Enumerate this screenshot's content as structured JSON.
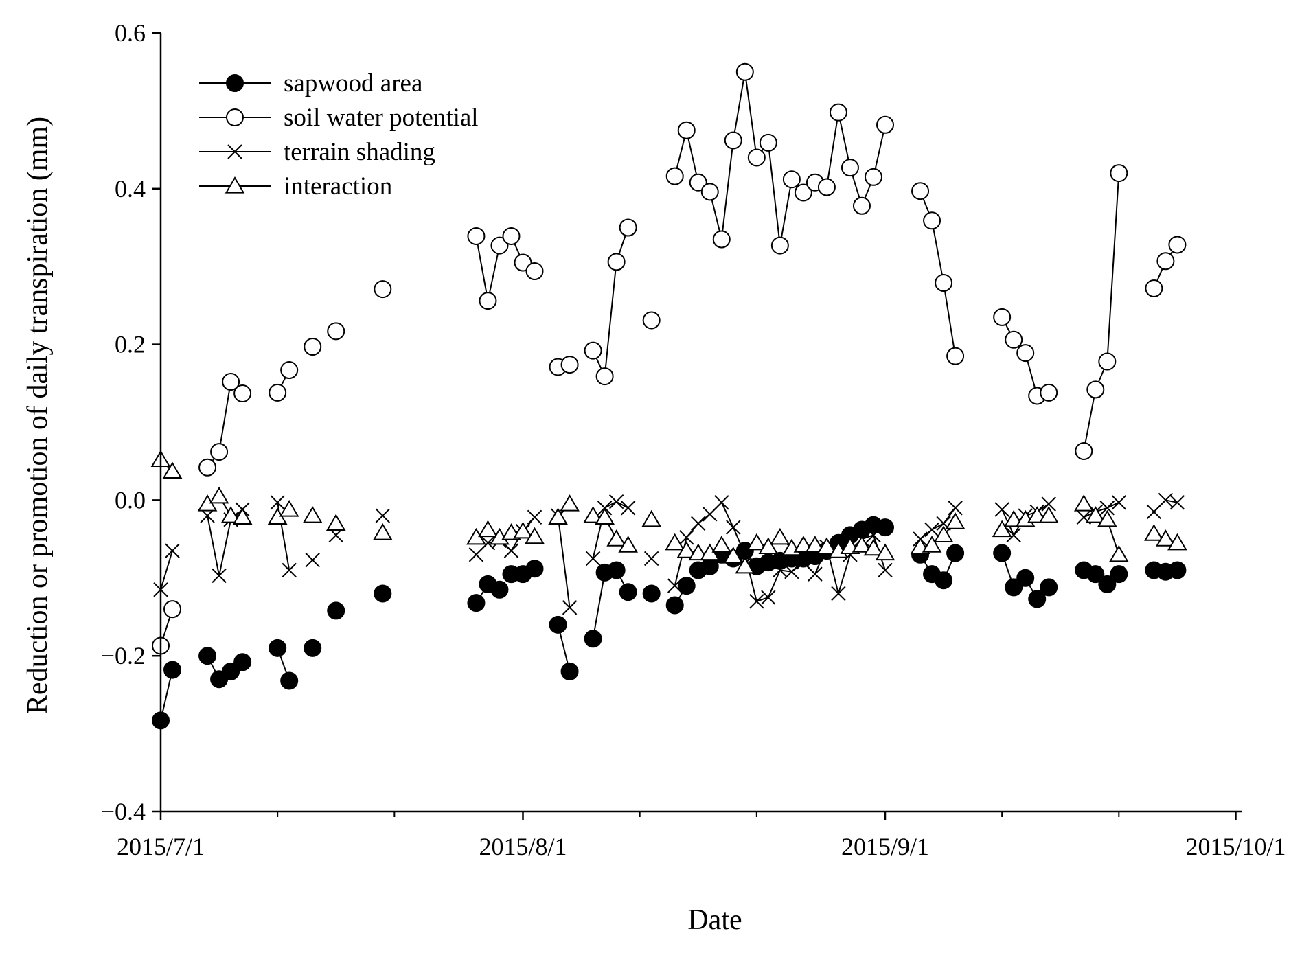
{
  "chart_data": {
    "type": "scatter",
    "title": "",
    "xlabel": "Date",
    "ylabel": "Reduction or promotion of daily transpiration (mm)",
    "x_unit": "day of year 2015",
    "xlim": [
      182,
      274.5
    ],
    "ylim": [
      -0.4,
      0.6
    ],
    "x_ticks": [
      {
        "value": 182,
        "label": "2015/7/1"
      },
      {
        "value": 213,
        "label": "2015/8/1"
      },
      {
        "value": 244,
        "label": "2015/9/1"
      },
      {
        "value": 274,
        "label": "2015/10/1"
      }
    ],
    "x_minor_ticks": [
      192,
      202,
      223,
      233,
      254,
      264
    ],
    "y_ticks": [
      {
        "value": -0.4,
        "label": "−0.4"
      },
      {
        "value": -0.2,
        "label": "−0.2"
      },
      {
        "value": 0.0,
        "label": "0.0"
      },
      {
        "value": 0.2,
        "label": "0.2"
      },
      {
        "value": 0.4,
        "label": "0.4"
      },
      {
        "value": 0.6,
        "label": "0.6"
      }
    ],
    "grid": false,
    "legend_position": "top-left",
    "series": [
      {
        "name": "sapwood area",
        "marker": "filled-circle",
        "color": "#000000",
        "segments": [
          [
            [
              182,
              -0.283
            ],
            [
              183,
              -0.218
            ]
          ],
          [
            [
              186,
              -0.2
            ],
            [
              187,
              -0.23
            ],
            [
              188,
              -0.22
            ],
            [
              189,
              -0.208
            ]
          ],
          [
            [
              192,
              -0.19
            ],
            [
              193,
              -0.232
            ]
          ],
          [
            [
              195,
              -0.19
            ]
          ],
          [
            [
              197,
              -0.142
            ]
          ],
          [
            [
              201,
              -0.12
            ]
          ],
          [
            [
              209,
              -0.132
            ],
            [
              210,
              -0.108
            ],
            [
              211,
              -0.115
            ]
          ],
          [
            [
              212,
              -0.095
            ],
            [
              213,
              -0.095
            ],
            [
              214,
              -0.088
            ]
          ],
          [
            [
              216,
              -0.16
            ],
            [
              217,
              -0.22
            ]
          ],
          [
            [
              219,
              -0.178
            ],
            [
              220,
              -0.093
            ],
            [
              221,
              -0.09
            ],
            [
              222,
              -0.118
            ]
          ],
          [
            [
              224,
              -0.12
            ]
          ],
          [
            [
              226,
              -0.135
            ],
            [
              227,
              -0.11
            ]
          ],
          [
            [
              228,
              -0.09
            ],
            [
              229,
              -0.085
            ],
            [
              230,
              -0.07
            ],
            [
              231,
              -0.075
            ],
            [
              232,
              -0.065
            ],
            [
              233,
              -0.085
            ],
            [
              234,
              -0.08
            ],
            [
              235,
              -0.078
            ],
            [
              236,
              -0.075
            ],
            [
              237,
              -0.075
            ],
            [
              238,
              -0.072
            ],
            [
              239,
              -0.065
            ],
            [
              240,
              -0.055
            ],
            [
              241,
              -0.045
            ],
            [
              242,
              -0.038
            ],
            [
              243,
              -0.032
            ],
            [
              244,
              -0.035
            ]
          ],
          [
            [
              247,
              -0.07
            ],
            [
              248,
              -0.095
            ],
            [
              249,
              -0.103
            ],
            [
              250,
              -0.068
            ]
          ],
          [
            [
              254,
              -0.068
            ],
            [
              255,
              -0.112
            ],
            [
              256,
              -0.1
            ],
            [
              257,
              -0.127
            ],
            [
              258,
              -0.112
            ]
          ],
          [
            [
              261,
              -0.09
            ],
            [
              262,
              -0.095
            ],
            [
              263,
              -0.108
            ],
            [
              264,
              -0.095
            ]
          ],
          [
            [
              267,
              -0.09
            ],
            [
              268,
              -0.092
            ],
            [
              269,
              -0.09
            ]
          ]
        ]
      },
      {
        "name": "soil water potential",
        "marker": "open-circle",
        "color": "#000000",
        "segments": [
          [
            [
              182,
              -0.187
            ],
            [
              183,
              -0.14
            ]
          ],
          [
            [
              186,
              0.042
            ],
            [
              187,
              0.062
            ],
            [
              188,
              0.152
            ],
            [
              189,
              0.137
            ]
          ],
          [
            [
              192,
              0.138
            ],
            [
              193,
              0.167
            ]
          ],
          [
            [
              195,
              0.197
            ]
          ],
          [
            [
              197,
              0.217
            ]
          ],
          [
            [
              201,
              0.271
            ]
          ],
          [
            [
              209,
              0.339
            ],
            [
              210,
              0.256
            ],
            [
              211,
              0.327
            ],
            [
              212,
              0.339
            ],
            [
              213,
              0.305
            ],
            [
              214,
              0.294
            ]
          ],
          [
            [
              216,
              0.171
            ],
            [
              217,
              0.174
            ]
          ],
          [
            [
              219,
              0.192
            ],
            [
              220,
              0.159
            ],
            [
              221,
              0.306
            ],
            [
              222,
              0.35
            ]
          ],
          [
            [
              224,
              0.231
            ]
          ],
          [
            [
              226,
              0.416
            ],
            [
              227,
              0.475
            ],
            [
              228,
              0.408
            ],
            [
              229,
              0.396
            ],
            [
              230,
              0.335
            ],
            [
              231,
              0.462
            ],
            [
              232,
              0.55
            ],
            [
              233,
              0.44
            ],
            [
              234,
              0.459
            ],
            [
              235,
              0.327
            ],
            [
              236,
              0.412
            ],
            [
              237,
              0.395
            ],
            [
              238,
              0.408
            ],
            [
              239,
              0.402
            ],
            [
              240,
              0.498
            ],
            [
              241,
              0.427
            ],
            [
              242,
              0.378
            ],
            [
              243,
              0.415
            ],
            [
              244,
              0.482
            ]
          ],
          [
            [
              247,
              0.397
            ],
            [
              248,
              0.359
            ],
            [
              249,
              0.279
            ],
            [
              250,
              0.185
            ]
          ],
          [
            [
              254,
              0.235
            ],
            [
              255,
              0.206
            ],
            [
              256,
              0.189
            ],
            [
              257,
              0.134
            ],
            [
              258,
              0.138
            ]
          ],
          [
            [
              261,
              0.063
            ],
            [
              262,
              0.142
            ],
            [
              263,
              0.178
            ],
            [
              264,
              0.42
            ]
          ],
          [
            [
              267,
              0.272
            ],
            [
              268,
              0.307
            ],
            [
              269,
              0.328
            ]
          ]
        ]
      },
      {
        "name": "terrain shading",
        "marker": "cross",
        "color": "#000000",
        "segments": [
          [
            [
              182,
              -0.115
            ],
            [
              183,
              -0.065
            ]
          ],
          [
            [
              186,
              -0.02
            ],
            [
              187,
              -0.097
            ],
            [
              188,
              -0.025
            ],
            [
              189,
              -0.012
            ]
          ],
          [
            [
              192,
              -0.003
            ],
            [
              193,
              -0.09
            ]
          ],
          [
            [
              195,
              -0.077
            ]
          ],
          [
            [
              197,
              -0.045
            ]
          ],
          [
            [
              201,
              -0.02
            ]
          ],
          [
            [
              209,
              -0.07
            ],
            [
              210,
              -0.055
            ],
            [
              211,
              -0.052
            ],
            [
              212,
              -0.065
            ],
            [
              213,
              -0.04
            ],
            [
              214,
              -0.022
            ]
          ],
          [
            [
              216,
              -0.02
            ],
            [
              217,
              -0.138
            ]
          ],
          [
            [
              219,
              -0.075
            ],
            [
              220,
              -0.01
            ],
            [
              221,
              -0.002
            ],
            [
              222,
              -0.01
            ]
          ],
          [
            [
              224,
              -0.075
            ]
          ],
          [
            [
              226,
              -0.11
            ],
            [
              227,
              -0.048
            ],
            [
              228,
              -0.03
            ],
            [
              229,
              -0.018
            ],
            [
              230,
              -0.003
            ],
            [
              231,
              -0.035
            ],
            [
              232,
              -0.07
            ],
            [
              233,
              -0.13
            ],
            [
              234,
              -0.125
            ],
            [
              235,
              -0.09
            ],
            [
              236,
              -0.092
            ],
            [
              237,
              -0.08
            ],
            [
              238,
              -0.095
            ],
            [
              239,
              -0.06
            ],
            [
              240,
              -0.12
            ],
            [
              241,
              -0.07
            ],
            [
              242,
              -0.05
            ],
            [
              243,
              -0.045
            ],
            [
              244,
              -0.09
            ]
          ],
          [
            [
              247,
              -0.05
            ],
            [
              248,
              -0.038
            ],
            [
              249,
              -0.03
            ],
            [
              250,
              -0.01
            ]
          ],
          [
            [
              254,
              -0.012
            ],
            [
              255,
              -0.045
            ],
            [
              256,
              -0.02
            ],
            [
              257,
              -0.015
            ],
            [
              258,
              -0.005
            ]
          ],
          [
            [
              261,
              -0.022
            ],
            [
              262,
              -0.015
            ],
            [
              263,
              -0.01
            ],
            [
              264,
              -0.003
            ]
          ],
          [
            [
              267,
              -0.015
            ],
            [
              268,
              0.0
            ],
            [
              269,
              -0.003
            ]
          ]
        ]
      },
      {
        "name": "interaction",
        "marker": "open-triangle",
        "color": "#000000",
        "segments": [
          [
            [
              182,
              0.052
            ],
            [
              183,
              0.037
            ]
          ],
          [
            [
              186,
              -0.005
            ],
            [
              187,
              0.005
            ],
            [
              188,
              -0.02
            ],
            [
              189,
              -0.022
            ]
          ],
          [
            [
              192,
              -0.022
            ],
            [
              193,
              -0.012
            ]
          ],
          [
            [
              195,
              -0.02
            ]
          ],
          [
            [
              197,
              -0.03
            ]
          ],
          [
            [
              201,
              -0.042
            ]
          ],
          [
            [
              209,
              -0.048
            ],
            [
              210,
              -0.038
            ],
            [
              211,
              -0.048
            ],
            [
              212,
              -0.042
            ],
            [
              213,
              -0.04
            ],
            [
              214,
              -0.047
            ]
          ],
          [
            [
              216,
              -0.022
            ],
            [
              217,
              -0.005
            ]
          ],
          [
            [
              219,
              -0.02
            ],
            [
              220,
              -0.022
            ],
            [
              221,
              -0.05
            ],
            [
              222,
              -0.058
            ]
          ],
          [
            [
              224,
              -0.025
            ]
          ],
          [
            [
              226,
              -0.055
            ],
            [
              227,
              -0.065
            ],
            [
              228,
              -0.068
            ],
            [
              229,
              -0.068
            ],
            [
              230,
              -0.058
            ],
            [
              231,
              -0.072
            ],
            [
              232,
              -0.085
            ],
            [
              233,
              -0.055
            ],
            [
              234,
              -0.06
            ],
            [
              235,
              -0.048
            ],
            [
              236,
              -0.062
            ],
            [
              237,
              -0.058
            ],
            [
              238,
              -0.058
            ],
            [
              239,
              -0.06
            ],
            [
              240,
              -0.065
            ],
            [
              241,
              -0.06
            ],
            [
              242,
              -0.058
            ],
            [
              243,
              -0.062
            ],
            [
              244,
              -0.068
            ]
          ],
          [
            [
              247,
              -0.06
            ],
            [
              248,
              -0.058
            ],
            [
              249,
              -0.045
            ],
            [
              250,
              -0.028
            ]
          ],
          [
            [
              254,
              -0.038
            ],
            [
              255,
              -0.025
            ],
            [
              256,
              -0.025
            ],
            [
              257,
              -0.02
            ],
            [
              258,
              -0.02
            ]
          ],
          [
            [
              261,
              -0.005
            ],
            [
              262,
              -0.02
            ],
            [
              263,
              -0.025
            ],
            [
              264,
              -0.07
            ]
          ],
          [
            [
              267,
              -0.043
            ],
            [
              268,
              -0.05
            ],
            [
              269,
              -0.055
            ]
          ]
        ]
      }
    ]
  }
}
